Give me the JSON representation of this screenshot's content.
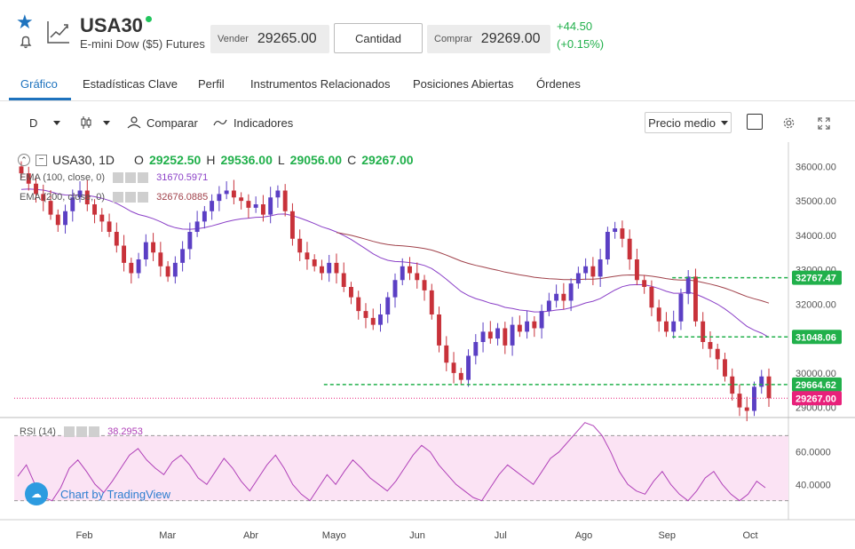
{
  "header": {
    "symbol": "USA30",
    "name": "E-mini Dow ($5) Futures",
    "sell_label": "Vender",
    "sell_price": "29265.00",
    "quantity_label": "Cantidad",
    "buy_label": "Comprar",
    "buy_price": "29269.00",
    "change_abs": "+44.50",
    "change_pct": "(+0.15%)"
  },
  "tabs": [
    {
      "label": "Gráfico",
      "active": true
    },
    {
      "label": "Estadísticas Clave"
    },
    {
      "label": "Perfil"
    },
    {
      "label": "Instrumentos Relacionados"
    },
    {
      "label": "Posiciones Abiertas"
    },
    {
      "label": "Órdenes"
    }
  ],
  "toolbar": {
    "interval": "D",
    "compare_label": "Comparar",
    "indicators_label": "Indicadores",
    "price_type": "Precio medio"
  },
  "legend": {
    "symbol_interval": "USA30, 1D",
    "o_label": "O",
    "o_value": "29252.50",
    "h_label": "H",
    "h_value": "29536.00",
    "l_label": "L",
    "l_value": "29056.00",
    "c_label": "C",
    "c_value": "29267.00",
    "ema100_label": "EMA (100, close, 0)",
    "ema100_value": "31670.5971",
    "ema200_label": "EMA (200, close, 0)",
    "ema200_value": "32676.0885",
    "rsi_label": "RSI (14)",
    "rsi_value": "38.2953"
  },
  "badge": {
    "text": "Chart by TradingView"
  },
  "colors": {
    "accent": "#1e73be",
    "up": "#5b3fc4",
    "down": "#c8323a",
    "positive": "#21b04b",
    "ema100": "#8a3fc7",
    "ema200": "#a0414a",
    "rsi": "#b040b8",
    "rsi_band": "#fbe3f4",
    "current_price": "#e8207a",
    "level_line": "#21b04b"
  },
  "chart_data": {
    "type": "candlestick",
    "interval": "1D",
    "y_axis_ticks": [
      "36000.00",
      "35000.00",
      "34000.00",
      "33000.00",
      "32000.00",
      "31000.00",
      "30000.00",
      "29000.00"
    ],
    "ylim": [
      28500,
      36500
    ],
    "x_axis_months": [
      "Feb",
      "Mar",
      "Abr",
      "Mayo",
      "Jun",
      "Jul",
      "Ago",
      "Sep",
      "Oct"
    ],
    "current_price": "29267.00",
    "levels": [
      "32767.47",
      "31048.06",
      "29664.62"
    ],
    "close_path": [
      35800,
      35500,
      35200,
      35000,
      34600,
      34300,
      34700,
      35100,
      35300,
      34900,
      34600,
      34400,
      34100,
      33700,
      33200,
      32900,
      33300,
      33800,
      33500,
      33100,
      32800,
      33200,
      33600,
      34100,
      34400,
      34700,
      35000,
      35200,
      35300,
      35100,
      35000,
      34800,
      34900,
      34600,
      35100,
      35300,
      34700,
      33900,
      33500,
      33300,
      33100,
      32900,
      33200,
      32900,
      32500,
      32200,
      31800,
      31600,
      31400,
      31700,
      32200,
      32700,
      33100,
      32900,
      32700,
      32400,
      31700,
      30800,
      30300,
      30000,
      29800,
      30500,
      30900,
      31200,
      31000,
      31300,
      30800,
      31400,
      31200,
      31500,
      31300,
      31800,
      32100,
      32300,
      32100,
      32600,
      32900,
      33100,
      32800,
      33300,
      34100,
      34200,
      33900,
      33300,
      32700,
      32500,
      31900,
      31500,
      31200,
      31500,
      32300,
      32800,
      31500,
      30900,
      30700,
      30400,
      29900,
      29400,
      29000,
      28900,
      29600,
      29900,
      29267
    ],
    "ema100_start": 35300,
    "ema100_end": 31670.5971,
    "ema200_start": 33900,
    "ema200_end": 32676.0885,
    "rsi": {
      "value": 38.2953,
      "y_axis_ticks": [
        "60.0000",
        "40.0000"
      ],
      "bands": [
        70,
        30
      ],
      "path": [
        45,
        52,
        40,
        32,
        30,
        38,
        50,
        55,
        48,
        40,
        35,
        42,
        50,
        58,
        62,
        55,
        50,
        46,
        54,
        58,
        52,
        44,
        40,
        48,
        56,
        50,
        42,
        36,
        44,
        52,
        58,
        50,
        40,
        34,
        30,
        38,
        46,
        40,
        48,
        55,
        50,
        44,
        40,
        36,
        42,
        50,
        58,
        64,
        60,
        52,
        46,
        40,
        36,
        32,
        30,
        38,
        46,
        52,
        48,
        44,
        40,
        48,
        56,
        60,
        66,
        72,
        78,
        76,
        70,
        60,
        48,
        40,
        36,
        34,
        42,
        48,
        40,
        34,
        30,
        36,
        44,
        48,
        40,
        34,
        30,
        34,
        42,
        38
      ]
    }
  }
}
